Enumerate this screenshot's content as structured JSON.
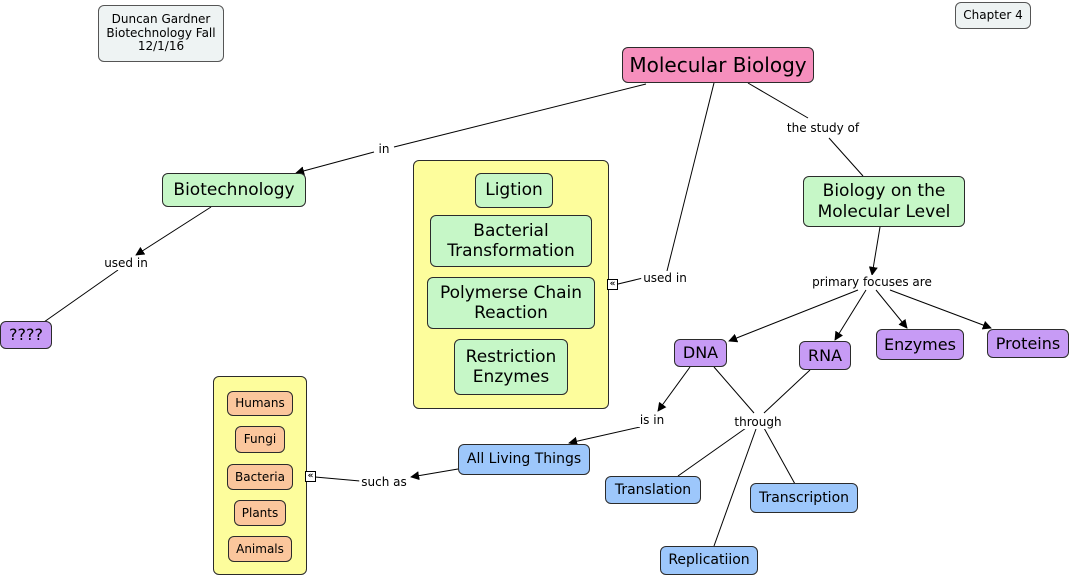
{
  "notes": {
    "author": "Duncan Gardner\nBiotechnology Fall\n12/1/16",
    "chapter": "Chapter 4"
  },
  "concepts": {
    "molecular_biology": "Molecular Biology",
    "biotechnology": "Biotechnology",
    "unknown": "????",
    "biology_molecular_level": "Biology on the\nMolecular Level",
    "dna": "DNA",
    "rna": "RNA",
    "enzymes": "Enzymes",
    "proteins": "Proteins",
    "all_living_things": "All Living Things",
    "translation": "Translation",
    "transcription": "Transcription",
    "replication": "Replicatiion"
  },
  "techniques_group": [
    "Ligtion",
    "Bacterial\nTransformation",
    "Polymerse Chain\nReaction",
    "Restriction\nEnzymes"
  ],
  "organisms_group": [
    "Humans",
    "Fungi",
    "Bacteria",
    "Plants",
    "Animals"
  ],
  "link_labels": {
    "in": "in",
    "the_study_of": "the study of",
    "used_in_biotech": "used in",
    "used_in_techniques": "used in",
    "primary_focuses_are": "primary focuses are",
    "is_in": "is in",
    "through": "through",
    "such_as": "such as"
  },
  "icons": {
    "expander": "double-chevron-left-icon"
  }
}
